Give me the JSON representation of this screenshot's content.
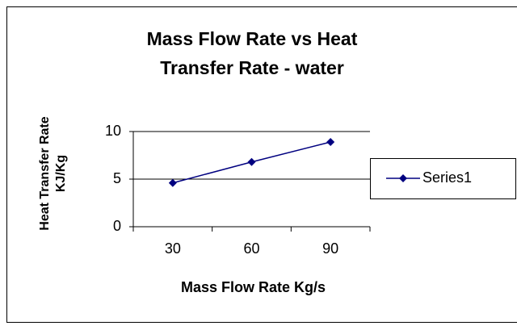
{
  "chart_data": {
    "type": "line",
    "title": "Mass Flow Rate vs Heat Transfer Rate - water",
    "x_label": "Mass Flow Rate Kg/s",
    "y_label": "Heat Transfer Rate KJ/Kg",
    "categories": [
      "30",
      "60",
      "90"
    ],
    "series": [
      {
        "name": "Series1",
        "color": "#000080",
        "values": [
          4.6,
          6.8,
          8.9
        ]
      }
    ],
    "ylim": [
      0,
      10
    ],
    "yticks": [
      0,
      5,
      10
    ],
    "grid": true,
    "legend": "right"
  }
}
